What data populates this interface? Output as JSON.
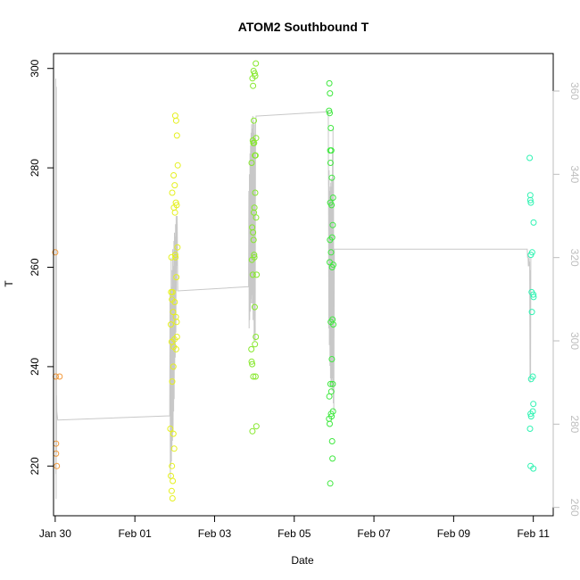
{
  "chart_data": {
    "type": "scatter",
    "title": "ATOM2 Southbound T",
    "xlabel": "Date",
    "ylabel": "T",
    "x_ticks": [
      "Jan 30",
      "Feb 01",
      "Feb 03",
      "Feb 05",
      "Feb 07",
      "Feb 09",
      "Feb 11"
    ],
    "y_ticks": [
      "220",
      "240",
      "260",
      "280",
      "300"
    ],
    "y2_ticks": [
      "260",
      "280",
      "300",
      "320",
      "340",
      "360"
    ],
    "xlim": [
      "2023-01-29T23:00",
      "2023-02-11T12:00"
    ],
    "ylim": [
      210,
      303
    ],
    "y2lim": [
      258,
      369
    ],
    "grid": false,
    "legend": "none",
    "colors": {
      "line": "#c8c8c8",
      "axis": "#000000",
      "secondary_axis": "#bebebe",
      "jan30": "#f39a3c",
      "feb02": "#e5f01f",
      "feb03": "#86e82c",
      "feb05": "#3fe83f",
      "feb11": "#2ff3b2"
    },
    "series": [
      {
        "color_key": "jan30",
        "x": [
          "2023-01-30T00:00",
          "2023-01-30T00:20",
          "2023-01-30T00:30",
          "2023-01-30T00:30",
          "2023-01-30T01:00",
          "2023-01-30T02:40"
        ],
        "y": [
          263,
          238,
          224.5,
          222.5,
          220,
          238
        ]
      },
      {
        "color_key": "feb02",
        "x": [
          "2023-02-01T21:20",
          "2023-02-01T21:40",
          "2023-02-01T22:10",
          "2023-02-01T22:40",
          "2023-02-01T22:20",
          "2023-02-01T23:10",
          "2023-02-01T23:40",
          "2023-02-01T22:50",
          "2023-02-02T00:20",
          "2023-02-02T00:50",
          "2023-02-02T01:20",
          "2023-02-02T01:50",
          "2023-02-01T23:20",
          "2023-02-02T00:00",
          "2023-02-01T22:30",
          "2023-02-02T00:40",
          "2023-02-02T01:10",
          "2023-02-01T23:30",
          "2023-02-02T00:10",
          "2023-02-02T01:40",
          "2023-02-01T22:00",
          "2023-02-02T00:30",
          "2023-02-02T01:00",
          "2023-02-01T21:50",
          "2023-02-01T22:20",
          "2023-02-02T00:00",
          "2023-02-01T23:00",
          "2023-02-02T00:40",
          "2023-02-01T21:40",
          "2023-02-02T01:20",
          "2023-02-01T23:50",
          "2023-02-01T22:10",
          "2023-02-01T23:20",
          "2023-02-02T00:50",
          "2023-02-01T22:40",
          "2023-02-02T01:10",
          "2023-02-01T22:30",
          "2023-02-01T23:10",
          "2023-02-02T00:20"
        ],
        "y": [
          227.5,
          218,
          215,
          213.5,
          220,
          226.5,
          223.5,
          217,
          290.5,
          289.5,
          286.5,
          280.5,
          278.5,
          276.5,
          275,
          273,
          272.5,
          272,
          271,
          264,
          262,
          262,
          258,
          255,
          253.5,
          253,
          251,
          250,
          248.5,
          246,
          245.5,
          245,
          244,
          243.5,
          255,
          249,
          237,
          240,
          262.5
        ]
      },
      {
        "color_key": "feb03",
        "x": [
          "2023-02-04T00:50",
          "2023-02-03T23:30",
          "2023-02-04T00:10",
          "2023-02-04T00:30",
          "2023-02-03T22:50",
          "2023-02-03T23:10",
          "2023-02-03T23:40",
          "2023-02-04T01:00",
          "2023-02-03T23:00",
          "2023-02-03T23:20",
          "2023-02-03T23:50",
          "2023-02-04T00:20",
          "2023-02-04T00:40",
          "2023-02-03T22:20",
          "2023-02-03T22:40",
          "2023-02-03T23:10",
          "2023-02-03T23:30",
          "2023-02-04T00:00",
          "2023-02-03T22:30",
          "2023-02-03T23:00",
          "2023-02-04T00:10",
          "2023-02-04T00:50",
          "2023-02-03T22:10",
          "2023-02-04T00:20",
          "2023-02-03T22:20",
          "2023-02-03T22:40",
          "2023-02-04T01:10",
          "2023-02-03T22:50",
          "2023-02-03T23:20",
          "2023-02-04T00:40",
          "2023-02-03T23:40",
          "2023-02-04T00:00",
          "2023-02-03T23:50",
          "2023-02-04T01:20",
          "2023-02-04T01:00",
          "2023-02-04T00:30"
        ],
        "y": [
          301,
          299.5,
          299,
          298.5,
          298,
          296.5,
          289.5,
          286,
          285.5,
          285,
          285,
          282.5,
          282.5,
          281,
          268,
          267,
          265.5,
          262,
          261.5,
          258.5,
          252,
          246,
          243.5,
          244.5,
          241,
          240.5,
          228,
          227,
          238,
          238,
          271,
          272,
          262.5,
          258.5,
          270,
          275
        ]
      },
      {
        "color_key": "feb05",
        "x": [
          "2023-02-05T21:10",
          "2023-02-05T21:30",
          "2023-02-05T21:00",
          "2023-02-05T21:20",
          "2023-02-05T22:00",
          "2023-02-05T21:40",
          "2023-02-05T22:20",
          "2023-02-05T21:50",
          "2023-02-05T22:40",
          "2023-02-05T23:10",
          "2023-02-05T21:30",
          "2023-02-05T22:10",
          "2023-02-05T22:50",
          "2023-02-05T23:30",
          "2023-02-05T21:20",
          "2023-02-05T21:40",
          "2023-02-05T22:30",
          "2023-02-05T23:00",
          "2023-02-05T22:00",
          "2023-02-05T21:50",
          "2023-02-05T22:40",
          "2023-02-05T21:10",
          "2023-02-05T23:20",
          "2023-02-05T22:10",
          "2023-02-05T22:30",
          "2023-02-05T21:00",
          "2023-02-05T21:20",
          "2023-02-05T22:50",
          "2023-02-05T23:00",
          "2023-02-05T21:40",
          "2023-02-05T22:20",
          "2023-02-05T23:10",
          "2023-02-05T22:50",
          "2023-02-05T23:20",
          "2023-02-05T23:30"
        ],
        "y": [
          297,
          295,
          291.5,
          291,
          288,
          283.5,
          283.5,
          281,
          278,
          268.5,
          265.5,
          263,
          260,
          260.5,
          261,
          273,
          272.5,
          249.5,
          249,
          236.5,
          241.5,
          234,
          231,
          230.5,
          230,
          229.5,
          228.5,
          225,
          221.5,
          216.5,
          235,
          236.5,
          266,
          274,
          248.5
        ]
      },
      {
        "color_key": "feb11",
        "x": [
          "2023-02-10T21:50",
          "2023-02-10T22:10",
          "2023-02-10T22:30",
          "2023-02-10T22:10",
          "2023-02-11T00:10",
          "2023-02-10T22:30",
          "2023-02-10T23:00",
          "2023-02-11T00:00",
          "2023-02-10T23:10",
          "2023-02-10T23:40",
          "2023-02-10T22:20",
          "2023-02-10T22:40",
          "2023-02-11T00:00",
          "2023-02-10T22:00",
          "2023-02-10T22:20",
          "2023-02-11T00:00",
          "2023-02-10T23:20",
          "2023-02-11T00:10",
          "2023-02-10T22:40",
          "2023-02-10T23:40"
        ],
        "y": [
          282,
          274.5,
          273,
          273.5,
          269,
          262.5,
          255,
          254.5,
          251,
          238,
          230.5,
          230,
          232.5,
          227.5,
          220,
          219.5,
          263,
          254,
          237.5,
          231
        ]
      }
    ],
    "line_series": {
      "color_key": "line",
      "x": [
        "2023-01-30T00:20",
        "2023-01-30T00:25",
        "2023-01-30T00:30",
        "2023-01-30T00:35",
        "2023-01-30T00:40",
        "2023-01-30T00:45",
        "2023-01-30T00:50",
        "2023-01-30T01:00",
        "2023-01-30T01:30",
        "2023-02-01T21:00",
        "2023-02-01T21:10",
        "2023-02-01T21:20",
        "2023-02-01T21:30",
        "2023-02-01T21:40",
        "2023-02-01T21:50",
        "2023-02-01T22:00",
        "2023-02-01T22:10",
        "2023-02-01T22:20",
        "2023-02-01T22:30",
        "2023-02-01T22:40",
        "2023-02-01T22:50",
        "2023-02-01T23:00",
        "2023-02-01T23:10",
        "2023-02-01T23:20",
        "2023-02-01T23:30",
        "2023-02-01T23:40",
        "2023-02-01T23:50",
        "2023-02-02T00:00",
        "2023-02-02T00:10",
        "2023-02-02T00:20",
        "2023-02-02T00:30",
        "2023-02-02T00:40",
        "2023-02-02T00:50",
        "2023-02-02T01:00",
        "2023-02-02T01:10",
        "2023-02-02T01:20",
        "2023-02-02T01:30",
        "2023-02-02T01:40",
        "2023-02-02T01:50",
        "2023-02-03T20:30",
        "2023-02-03T20:40",
        "2023-02-03T20:50",
        "2023-02-03T21:00",
        "2023-02-03T21:10",
        "2023-02-03T21:20",
        "2023-02-03T21:30",
        "2023-02-03T21:40",
        "2023-02-03T21:50",
        "2023-02-03T22:00",
        "2023-02-03T22:10",
        "2023-02-03T22:20",
        "2023-02-03T22:30",
        "2023-02-03T22:40",
        "2023-02-03T22:50",
        "2023-02-03T23:00",
        "2023-02-03T23:10",
        "2023-02-03T23:20",
        "2023-02-03T23:30",
        "2023-02-03T23:40",
        "2023-02-03T23:50",
        "2023-02-04T00:00",
        "2023-02-04T00:10",
        "2023-02-04T00:20",
        "2023-02-04T00:30",
        "2023-02-04T00:40",
        "2023-02-04T01:00",
        "2023-02-04T02:00",
        "2023-02-05T20:30",
        "2023-02-05T20:40",
        "2023-02-05T20:50",
        "2023-02-05T21:00",
        "2023-02-05T21:10",
        "2023-02-05T21:20",
        "2023-02-05T21:30",
        "2023-02-05T21:40",
        "2023-02-05T21:50",
        "2023-02-05T22:00",
        "2023-02-05T22:10",
        "2023-02-05T22:20",
        "2023-02-05T22:30",
        "2023-02-05T22:40",
        "2023-02-05T22:50",
        "2023-02-05T23:00",
        "2023-02-05T23:10",
        "2023-02-05T23:20",
        "2023-02-05T23:30",
        "2023-02-05T23:40",
        "2023-02-05T23:50",
        "2023-02-06T00:10",
        "2023-02-10T20:20",
        "2023-02-10T20:30",
        "2023-02-10T20:40",
        "2023-02-10T20:50",
        "2023-02-10T21:00",
        "2023-02-10T21:10",
        "2023-02-10T21:20",
        "2023-02-10T21:30",
        "2023-02-10T21:40",
        "2023-02-10T21:50",
        "2023-02-10T22:00",
        "2023-02-10T22:10",
        "2023-02-10T22:20",
        "2023-02-10T22:30"
      ],
      "y2": [
        363,
        268,
        358,
        262,
        361,
        273,
        287,
        283,
        281,
        282,
        311,
        267,
        312,
        270,
        320,
        271,
        313,
        274,
        317,
        276,
        322,
        278,
        318,
        283,
        324,
        286,
        326,
        293,
        325,
        296,
        328,
        302,
        330,
        312,
        328,
        318,
        330,
        320,
        312,
        313,
        336,
        303,
        340,
        305,
        345,
        307,
        347,
        310,
        350,
        309,
        352,
        311,
        351,
        309,
        354,
        305,
        353,
        309,
        350,
        300,
        352,
        302,
        348,
        300,
        352,
        354,
        354,
        355,
        336,
        303,
        341,
        299,
        336,
        294,
        337,
        291,
        338,
        289,
        339,
        290,
        337,
        288,
        345,
        291,
        351,
        285,
        339,
        283,
        322,
        322,
        320,
        321,
        320,
        318,
        318,
        319,
        320,
        318,
        319,
        290,
        317,
        292,
        320,
        299
      ]
    }
  }
}
